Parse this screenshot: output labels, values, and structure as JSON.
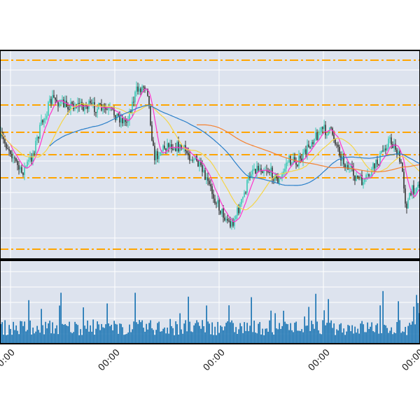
{
  "chart_data": {
    "type": "candlestick-with-volume",
    "title": "",
    "x_tick_labels": [
      "00:00",
      "00:00",
      "00:00",
      "00:00",
      "00:00"
    ],
    "price_panel": {
      "horizontal_levels_count": 6,
      "moving_averages": [
        {
          "color": "#ff33cc"
        },
        {
          "color": "#f5d547"
        },
        {
          "color": "#2a7fc9"
        },
        {
          "color": "#f58231"
        }
      ],
      "candles": {
        "up_color": "#38c9b5",
        "down_color": "#333333",
        "count": 300
      }
    },
    "volume_panel": {
      "bar_color": "#1f77b4",
      "bars_count": 300
    }
  },
  "colors": {
    "plot_background": "#dde3ee",
    "grid": "#ffffff",
    "frame": "#000000",
    "level_lines": "#ffa500",
    "volume_bars": "#1f77b4"
  }
}
